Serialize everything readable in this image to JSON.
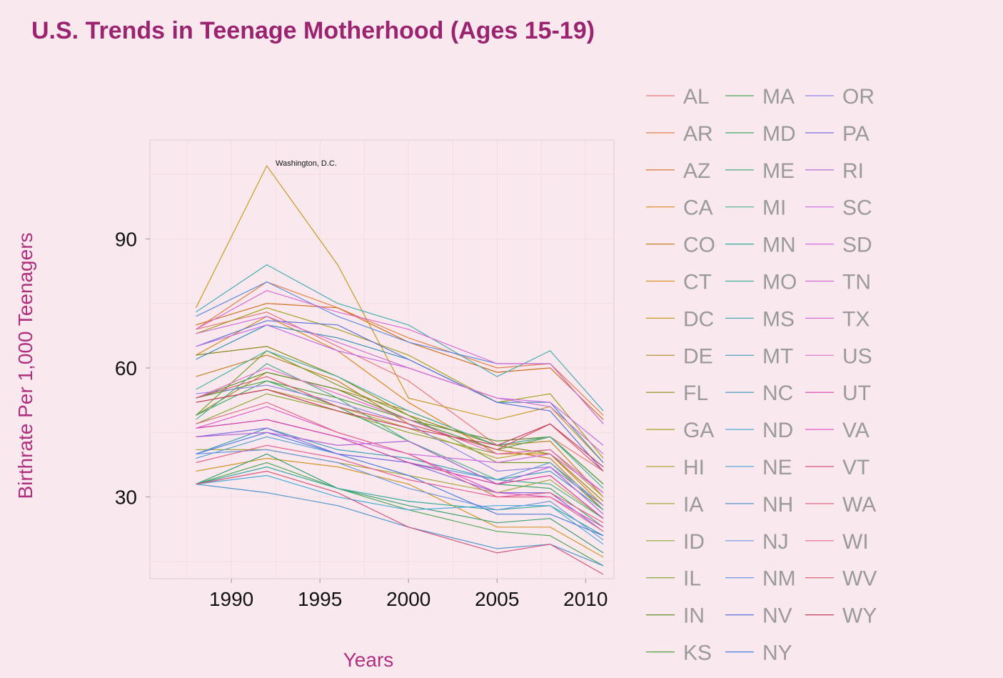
{
  "title": "U.S. Trends in Teenage Motherhood (Ages 15-19)",
  "chart_data": {
    "type": "line",
    "title": "U.S. Trends in Teenage Motherhood (Ages 15-19)",
    "xlabel": "Years",
    "ylabel": "Birthrate Per 1,000 Teenagers",
    "x": [
      1988,
      1992,
      1996,
      2000,
      2005,
      2008,
      2011
    ],
    "xlim": [
      1985.4,
      2011.6
    ],
    "ylim": [
      11,
      113
    ],
    "x_ticks": [
      1990,
      1995,
      2000,
      2005,
      2010
    ],
    "y_ticks": [
      30,
      60,
      90
    ],
    "grid": true,
    "legend_position": "right",
    "annotations": [
      {
        "text": "Washington, D.C.",
        "x": 1992.5,
        "y": 107
      }
    ],
    "series": [
      {
        "name": "AL",
        "color": "#e8777c",
        "values": [
          69,
          73,
          65,
          57,
          42,
          44,
          36
        ]
      },
      {
        "name": "AR",
        "color": "#e47f45",
        "values": [
          69,
          80,
          74,
          67,
          60,
          61,
          49
        ]
      },
      {
        "name": "AZ",
        "color": "#cf6d1d",
        "values": [
          70,
          75,
          74,
          66,
          59,
          60,
          48
        ]
      },
      {
        "name": "CA",
        "color": "#d8871d",
        "values": [
          63,
          72,
          64,
          52,
          40,
          40,
          28
        ]
      },
      {
        "name": "CO",
        "color": "#c57e20",
        "values": [
          58,
          63,
          57,
          47,
          41,
          39,
          27
        ]
      },
      {
        "name": "CT",
        "color": "#d49428",
        "values": [
          36,
          39,
          37,
          33,
          23,
          23,
          16
        ]
      },
      {
        "name": "DC",
        "color": "#c89a22",
        "values": [
          74,
          107,
          84,
          53,
          48,
          51,
          38
        ]
      },
      {
        "name": "DE",
        "color": "#b08a2a",
        "values": [
          49,
          59,
          55,
          50,
          42,
          43,
          30
        ]
      },
      {
        "name": "FL",
        "color": "#8f8718",
        "values": [
          63,
          65,
          58,
          49,
          42,
          40,
          29
        ]
      },
      {
        "name": "GA",
        "color": "#a3a11e",
        "values": [
          68,
          74,
          69,
          63,
          52,
          54,
          39
        ]
      },
      {
        "name": "HI",
        "color": "#b4a640",
        "values": [
          52,
          55,
          51,
          46,
          39,
          41,
          30
        ]
      },
      {
        "name": "IA",
        "color": "#a7a840",
        "values": [
          41,
          41,
          38,
          35,
          31,
          34,
          25
        ]
      },
      {
        "name": "ID",
        "color": "#89a730",
        "values": [
          47,
          54,
          50,
          45,
          40,
          41,
          31
        ]
      },
      {
        "name": "IL",
        "color": "#74a030",
        "values": [
          49,
          64,
          56,
          49,
          38,
          38,
          27
        ]
      },
      {
        "name": "IN",
        "color": "#5f8c28",
        "values": [
          53,
          59,
          55,
          48,
          43,
          44,
          33
        ]
      },
      {
        "name": "KS",
        "color": "#52a040",
        "values": [
          53,
          57,
          53,
          48,
          41,
          44,
          33
        ]
      },
      {
        "name": "MA",
        "color": "#4fa858",
        "values": [
          33,
          38,
          32,
          27,
          22,
          21,
          14
        ]
      },
      {
        "name": "MD",
        "color": "#40a765",
        "values": [
          49,
          57,
          51,
          43,
          33,
          32,
          23
        ]
      },
      {
        "name": "ME",
        "color": "#3c9f72",
        "values": [
          33,
          40,
          32,
          28,
          24,
          25,
          17
        ]
      },
      {
        "name": "MI",
        "color": "#4db08a",
        "values": [
          48,
          61,
          53,
          43,
          34,
          33,
          25
        ]
      },
      {
        "name": "MN",
        "color": "#2fa89a",
        "values": [
          33,
          37,
          32,
          29,
          27,
          28,
          21
        ]
      },
      {
        "name": "MO",
        "color": "#45b2a0",
        "values": [
          55,
          64,
          58,
          50,
          42,
          44,
          32
        ]
      },
      {
        "name": "MS",
        "color": "#4aacb3",
        "values": [
          73,
          84,
          75,
          70,
          58,
          64,
          50
        ]
      },
      {
        "name": "MT",
        "color": "#3f9eb8",
        "values": [
          40,
          46,
          41,
          39,
          34,
          36,
          27
        ]
      },
      {
        "name": "NC",
        "color": "#3a8eb5",
        "values": [
          62,
          70,
          67,
          62,
          52,
          52,
          38
        ]
      },
      {
        "name": "ND",
        "color": "#4ba8da",
        "values": [
          33,
          35,
          30,
          27,
          28,
          28,
          19
        ]
      },
      {
        "name": "NE",
        "color": "#5ba2d8",
        "values": [
          39,
          44,
          40,
          38,
          34,
          38,
          28
        ]
      },
      {
        "name": "NH",
        "color": "#5294cc",
        "values": [
          33,
          31,
          28,
          23,
          18,
          19,
          14
        ]
      },
      {
        "name": "NJ",
        "color": "#6a98e0",
        "values": [
          40,
          41,
          38,
          32,
          27,
          29,
          20
        ]
      },
      {
        "name": "NM",
        "color": "#5f8ce0",
        "values": [
          72,
          80,
          72,
          66,
          61,
          61,
          47
        ]
      },
      {
        "name": "NV",
        "color": "#5a73d8",
        "values": [
          65,
          71,
          70,
          62,
          52,
          50,
          36
        ]
      },
      {
        "name": "NY",
        "color": "#4d7de0",
        "values": [
          40,
          45,
          40,
          35,
          26,
          26,
          21
        ]
      },
      {
        "name": "OR",
        "color": "#8d86e8",
        "values": [
          54,
          56,
          52,
          47,
          36,
          37,
          28
        ]
      },
      {
        "name": "PA",
        "color": "#7d6de0",
        "values": [
          44,
          46,
          40,
          38,
          31,
          31,
          22
        ]
      },
      {
        "name": "RI",
        "color": "#b35fd8",
        "values": [
          44,
          45,
          42,
          43,
          33,
          37,
          26
        ]
      },
      {
        "name": "SC",
        "color": "#c66ae8",
        "values": [
          65,
          70,
          64,
          60,
          53,
          52,
          42
        ]
      },
      {
        "name": "SD",
        "color": "#cf6ae0",
        "values": [
          46,
          48,
          44,
          40,
          38,
          40,
          31
        ]
      },
      {
        "name": "TN",
        "color": "#d26ed2",
        "values": [
          68,
          72,
          66,
          60,
          53,
          51,
          40
        ]
      },
      {
        "name": "TX",
        "color": "#dc6ad3",
        "values": [
          69,
          78,
          73,
          69,
          61,
          61,
          47
        ]
      },
      {
        "name": "US",
        "color": "#e36ec8",
        "values": [
          53,
          60,
          54,
          48,
          40,
          41,
          31
        ]
      },
      {
        "name": "UT",
        "color": "#d13ea6",
        "values": [
          46,
          48,
          44,
          38,
          33,
          35,
          25
        ]
      },
      {
        "name": "VA",
        "color": "#e057c8",
        "values": [
          46,
          51,
          45,
          40,
          31,
          30,
          23
        ]
      },
      {
        "name": "VT",
        "color": "#d5557a",
        "values": [
          33,
          36,
          31,
          23,
          17,
          19,
          12
        ]
      },
      {
        "name": "WA",
        "color": "#e06a8a",
        "values": [
          47,
          52,
          45,
          40,
          30,
          30,
          22
        ]
      },
      {
        "name": "WI",
        "color": "#e4628f",
        "values": [
          38,
          42,
          39,
          34,
          30,
          31,
          24
        ]
      },
      {
        "name": "WV",
        "color": "#d65868",
        "values": [
          53,
          58,
          51,
          47,
          41,
          47,
          36
        ]
      },
      {
        "name": "WY",
        "color": "#c43f5c",
        "values": [
          52,
          55,
          50,
          46,
          42,
          47,
          37
        ]
      }
    ]
  }
}
